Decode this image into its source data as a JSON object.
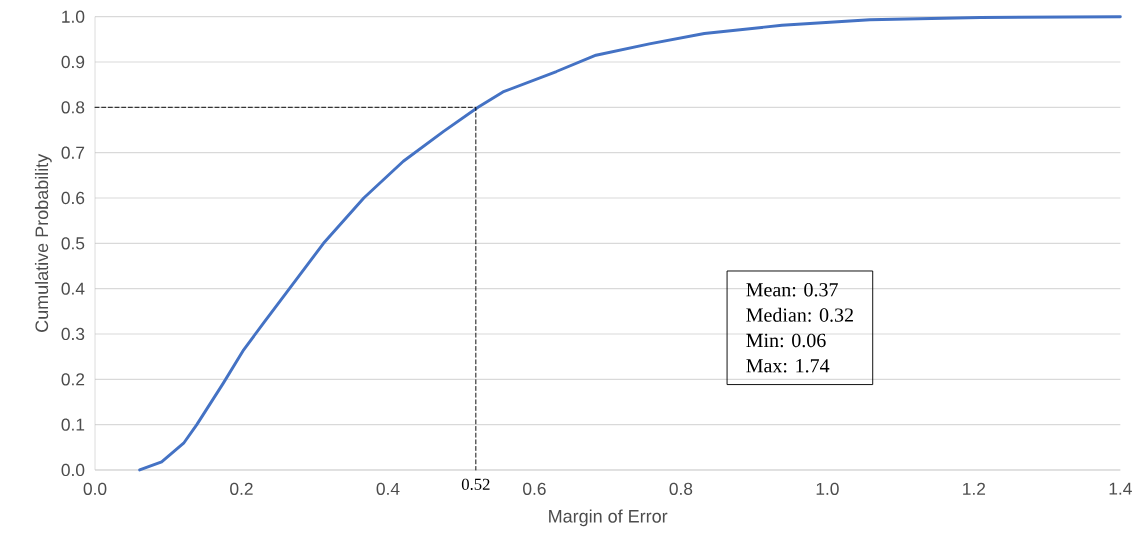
{
  "chart_data": {
    "type": "line",
    "xlabel": "Margin of Error",
    "ylabel": "Cumulative Probability",
    "xlim": [
      0,
      1.4
    ],
    "xticks": [
      {
        "value": 0,
        "label": "0.0"
      },
      0.2,
      0.4,
      0.6,
      0.8,
      {
        "value": 1,
        "label": "1.0"
      },
      1.2,
      1.4
    ],
    "ylim": [
      0,
      1
    ],
    "yticks": [
      {
        "value": 0,
        "label": "0.0"
      },
      0.1,
      0.2,
      0.3,
      0.4,
      0.5,
      0.6,
      0.7,
      0.8,
      0.9,
      {
        "value": 1,
        "label": "1.0"
      }
    ],
    "grid": "y",
    "series": [
      {
        "color": "#4472c4",
        "x": [
          0.061,
          0.091,
          0.121,
          0.139,
          0.175,
          0.203,
          0.23,
          0.266,
          0.312,
          0.367,
          0.421,
          0.476,
          0.523,
          0.557,
          0.63,
          0.684,
          0.757,
          0.832,
          0.938,
          1.058,
          1.209,
          1.4
        ],
        "values": [
          0,
          0.018,
          0.059,
          0.1,
          0.191,
          0.265,
          0.324,
          0.401,
          0.5,
          0.6,
          0.681,
          0.747,
          0.8,
          0.834,
          0.879,
          0.915,
          0.94,
          0.963,
          0.981,
          0.993,
          0.998,
          1.0
        ]
      },
      {
        "color": "#000000",
        "line_style": "dashed",
        "x": [
          0,
          0.52,
          0.52
        ],
        "values": [
          0.8,
          0.8,
          0
        ]
      }
    ],
    "annotations": [
      {
        "text": "0.52",
        "x": 0.52,
        "y": 0
      },
      "Mean:    0.37",
      "Median: 0.32",
      "Min:       0.06",
      "Max:      1.74"
    ]
  }
}
